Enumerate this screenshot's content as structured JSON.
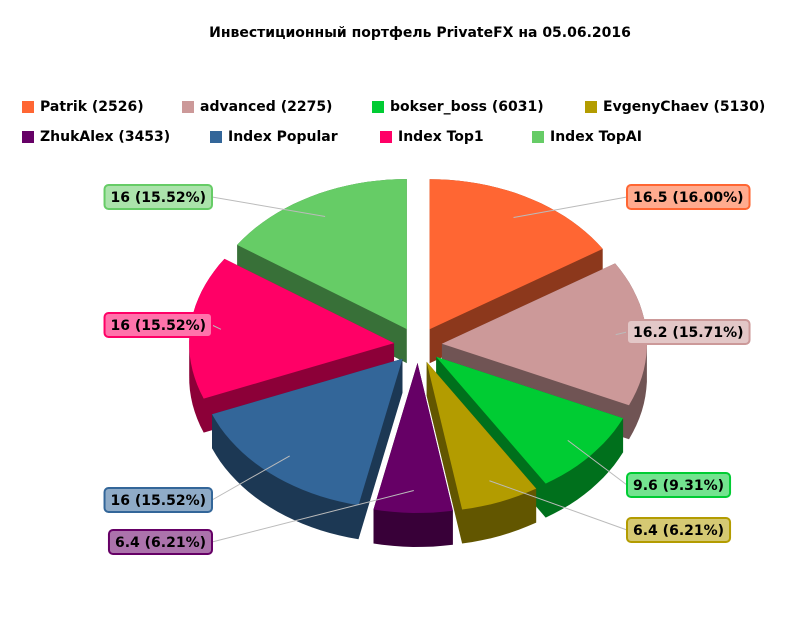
{
  "chart_data": {
    "type": "pie3d",
    "title": "Инвестиционный портфель PrivateFX на 05.06.2016",
    "categories": [
      "Patrik (2526)",
      "advanced (2275)",
      "bokser_boss (6031)",
      "EvgenyChaev (5130)",
      "ZhukAlex (3453)",
      "Index Popular",
      "Index Top1",
      "Index TopAI"
    ],
    "values": [
      16.5,
      16.2,
      9.6,
      6.4,
      6.4,
      16,
      16,
      16
    ],
    "value_labels": [
      "16.5 (16.00%)",
      "16.2 (15.71%)",
      "9.6 (9.31%)",
      "6.4 (6.21%)",
      "6.4 (6.21%)",
      "16 (15.52%)",
      "16 (15.52%)",
      "16 (15.52%)"
    ],
    "colors": [
      "#ff6633",
      "#cc9999",
      "#00cc33",
      "#b39c00",
      "#660066",
      "#336699",
      "#ff0066",
      "#66cc66"
    ],
    "legend": "top"
  }
}
